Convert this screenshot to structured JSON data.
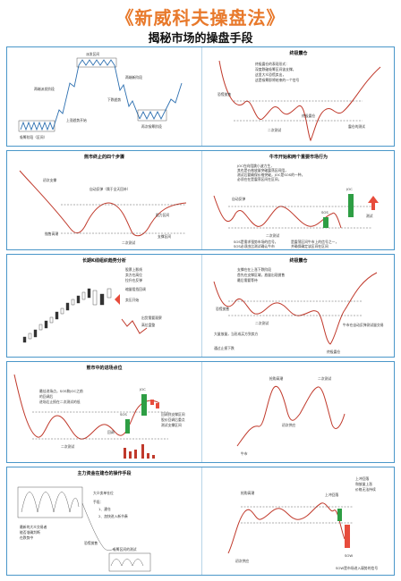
{
  "header": {
    "title": "《新威科夫操盘法》",
    "subtitle": "揭秘市场的操盘手段"
  },
  "s1": {
    "left": {
      "labels": {
        "dist": "派发区间",
        "upphase": "上升阶段",
        "markup": "两端派发阶段",
        "uptrend": "上涨趋势开始",
        "downtrend": "下跌趋势",
        "markdown": "两端派发阶段",
        "reacc": "两端新阶段",
        "accum": "吸筹阶段（区间）",
        "reaccum": "再次吸筹阶段"
      }
    },
    "right": {
      "title": "终极震仓",
      "labels": {
        "note1": "终极震仓的表现形式：",
        "note2": "深度跌破吸筹区间该支撑，",
        "note3": "这里大众恐慌卖出，",
        "note4": "这是吸筹即将结束的一个信号",
        "panic": "恐慌抛售",
        "st": "二次测试",
        "spring": "终极震仓",
        "shake": "震仓的测试"
      }
    }
  },
  "s2": {
    "left": {
      "title": "熊市终止的四个步骤",
      "labels": {
        "prelim": "初次支撑",
        "ar": "自动反弹（属于全天回补）",
        "sc": "抛售高潮",
        "resist": "阻力区间",
        "st": "二次测试",
        "support": "支撑区间"
      }
    },
    "right": {
      "title": "牛市开始和两个重要市场行为",
      "labels": {
        "n1": "JOC在向阻跳小波力生，",
        "n2": "其也是价格放量突破震荡区间阻，",
        "n3": "测试后要确保价格突破，JOC是SOS的一种，",
        "n4": "必须在在是震荡区间在区间，",
        "n5": "突破前有效的突破后，更多时间",
        "joc": "JOC",
        "ar": "自动反弹",
        "sos": "SOS",
        "test": "测试",
        "st": "二次测试",
        "sos_note1": "SOS是需求强势市场的信号，",
        "sos_note2": "是震荡区间牛市上的信号之一，",
        "sos_note3": "SOS必须由比测试确认牛市",
        "sos_note4": "并确保确定该区间在区间"
      }
    }
  },
  "s3": {
    "left": {
      "title": "长期K线组织趋势分析",
      "labels": {
        "n1": "股票上影线",
        "n2": "卖方在高位",
        "n3": "拉升在反弹",
        "n4": "缩量阻挡回调",
        "pressure": "卖压开始",
        "exit": "出货需要观察",
        "highs": "高位盘整"
      }
    },
    "right": {
      "title": "终极震仓",
      "labels": {
        "n1": "支撑在在上涨下跌阶段",
        "n2": "首先在支撑区域，放量出现抛售",
        "n3": "最后需要等待",
        "panic": "恐慌抛售",
        "st": "二次测试",
        "spring": "终极震仓",
        "note": "大量放量，当形成买方到卖方",
        "shake": "牛市在自动反弹测试量交易",
        "fall": "通过止损下跌"
      }
    }
  },
  "s4": {
    "left": {
      "title": "熊市中的进场点位",
      "labels": {
        "n1": "最佳进场点，SOS和JOC之前",
        "n2": "的回调后",
        "n3": "进场后止损在二次测试的低",
        "joc": "JOC",
        "sos": "SOS",
        "bu": "回调",
        "note1": "回调到支撑区间",
        "note2": "股价回调后重点",
        "note3": "测试支撑区间",
        "st": "二次测试"
      }
    },
    "right": {
      "labels": {
        "climax": "抢购高潮",
        "st": "二次测试",
        "sow": "初次供应",
        "bear": "牛市"
      }
    }
  },
  "s5": {
    "left": {
      "title": "主力资金在建仓的操作手段",
      "labels": {
        "n1": "大众卖单仓位",
        "n2": "手段：",
        "n3": "1、建仓",
        "n4": "2、加快进入新节奏",
        "left1": "最新的大众交易者",
        "left2": "能否准确判断",
        "left3": "在跌势中",
        "panic": "恐慌抛售",
        "accum": "吸筹区间的测试"
      }
    },
    "right": {
      "labels": {
        "climax": "抢购高潮",
        "upthrust": "上冲回落",
        "n1": "上冲回落",
        "n2": "和放量上涨",
        "n3": "价格无法持续",
        "sow": "初次供应",
        "sow2": "SOW",
        "note": "SOW是市场进入弱势的信号"
      }
    }
  }
}
